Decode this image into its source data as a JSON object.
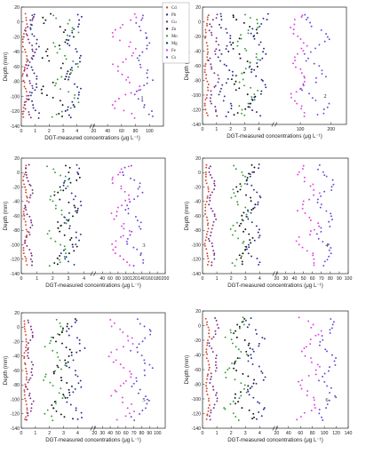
{
  "figure": {
    "xlabel": "DGT-measured concentrations (μg L⁻¹)",
    "ylabel": "Depth (mm)"
  },
  "legend": {
    "items": [
      {
        "label": "Cd",
        "color": "#d4472e"
      },
      {
        "label": "Pb",
        "color": "#2e2f8f"
      },
      {
        "label": "Cu",
        "color": "#7b2a86"
      },
      {
        "label": "Zn",
        "color": "#101010"
      },
      {
        "label": "Mn",
        "color": "#3a9a3a"
      },
      {
        "label": "Mg",
        "color": "#1f2b8c"
      },
      {
        "label": "Fe",
        "color": "#e03ee0"
      },
      {
        "label": "Cs",
        "color": "#6b45d6"
      }
    ]
  },
  "chart_data": [
    {
      "type": "scatter",
      "panel_label": "1",
      "ylim": [
        -140,
        20
      ],
      "y_ticks": [
        20,
        0,
        -20,
        -40,
        -60,
        -80,
        -100,
        -120,
        -140
      ],
      "x_segments": [
        {
          "range": [
            0,
            5
          ],
          "ticks": [
            "0",
            "1",
            "2",
            "3",
            "4"
          ]
        },
        {
          "range": [
            20,
            120
          ],
          "ticks": [
            "20",
            "40",
            "60",
            "80",
            "100"
          ]
        }
      ],
      "break_at": 5,
      "series": [
        {
          "label": "Cd",
          "profile": {
            "base": 0.25,
            "amp": 0.12
          },
          "segment": 0
        },
        {
          "label": "Cu",
          "profile": {
            "base": 0.55,
            "amp": 0.25
          },
          "segment": 0
        },
        {
          "label": "Pb",
          "profile": {
            "base": 0.9,
            "amp": 0.3
          },
          "segment": 0
        },
        {
          "label": "Zn",
          "profile": {
            "base": 2.6,
            "amp": 0.9
          },
          "segment": 0
        },
        {
          "label": "Mn",
          "profile": {
            "base": 3.2,
            "amp": 0.8
          },
          "segment": 0
        },
        {
          "label": "Mg",
          "profile": {
            "base": 3.8,
            "amp": 0.5
          },
          "segment": 0
        },
        {
          "label": "Fe",
          "profile": {
            "base": 65,
            "amp": 15
          },
          "segment": 1
        },
        {
          "label": "Cs",
          "profile": {
            "base": 92,
            "amp": 10
          },
          "segment": 1
        }
      ]
    },
    {
      "type": "scatter",
      "panel_label": "2",
      "ylim": [
        -140,
        20
      ],
      "y_ticks": [
        20,
        0,
        -20,
        -40,
        -60,
        -80,
        -100,
        -120,
        -140
      ],
      "x_segments": [
        {
          "range": [
            0,
            5
          ],
          "ticks": [
            "0",
            "1",
            "2",
            "3",
            "4"
          ]
        },
        {
          "range": [
            20,
            250
          ],
          "ticks": [
            "100",
            "200"
          ]
        }
      ],
      "break_at": 5,
      "series": [
        {
          "label": "Cd",
          "profile": {
            "base": 0.3,
            "amp": 0.1
          },
          "segment": 0
        },
        {
          "label": "Cu",
          "profile": {
            "base": 0.8,
            "amp": 0.3
          },
          "segment": 0
        },
        {
          "label": "Pb",
          "profile": {
            "base": 1.6,
            "amp": 0.4
          },
          "segment": 0
        },
        {
          "label": "Zn",
          "profile": {
            "base": 2.8,
            "amp": 0.8
          },
          "segment": 0
        },
        {
          "label": "Mn",
          "profile": {
            "base": 3.2,
            "amp": 0.7
          },
          "segment": 0
        },
        {
          "label": "Mg",
          "profile": {
            "base": 4.0,
            "amp": 0.5
          },
          "segment": 0
        },
        {
          "label": "Fe",
          "profile": {
            "base": 95,
            "amp": 20
          },
          "segment": 1
        },
        {
          "label": "Cs",
          "profile": {
            "base": 150,
            "amp": 35
          },
          "segment": 1
        }
      ]
    },
    {
      "type": "scatter",
      "panel_label": "3",
      "ylim": [
        -140,
        20
      ],
      "y_ticks": [
        20,
        0,
        -20,
        -40,
        -60,
        -80,
        -100,
        -120,
        -140
      ],
      "x_segments": [
        {
          "range": [
            0,
            4.5
          ],
          "ticks": [
            "0",
            "1",
            "2",
            "3",
            "4"
          ]
        },
        {
          "range": [
            20,
            200
          ],
          "ticks": [
            "40",
            "60",
            "80",
            "100",
            "120",
            "140",
            "160",
            "180",
            "200"
          ]
        }
      ],
      "break_at": 4.5,
      "series": [
        {
          "label": "Cd",
          "profile": {
            "base": 0.25,
            "amp": 0.1
          },
          "segment": 0
        },
        {
          "label": "Cu",
          "profile": {
            "base": 0.5,
            "amp": 0.2
          },
          "segment": 0
        },
        {
          "label": "Mn",
          "profile": {
            "base": 2.4,
            "amp": 0.6
          },
          "segment": 0
        },
        {
          "label": "Zn",
          "profile": {
            "base": 2.9,
            "amp": 0.6
          },
          "segment": 0
        },
        {
          "label": "Pb",
          "profile": {
            "base": 3.2,
            "amp": 0.5
          },
          "segment": 0
        },
        {
          "label": "Fe",
          "profile": {
            "base": 85,
            "amp": 18
          },
          "segment": 1
        },
        {
          "label": "Cs",
          "profile": {
            "base": 120,
            "amp": 20
          },
          "segment": 1
        }
      ]
    },
    {
      "type": "scatter",
      "panel_label": "4",
      "ylim": [
        -140,
        20
      ],
      "y_ticks": [
        20,
        0,
        -20,
        -40,
        -60,
        -80,
        -100,
        -120,
        -140
      ],
      "x_segments": [
        {
          "range": [
            0,
            5
          ],
          "ticks": [
            "0",
            "1",
            "2",
            "3",
            "4"
          ]
        },
        {
          "range": [
            20,
            100
          ],
          "ticks": [
            "20",
            "30",
            "40",
            "50",
            "60",
            "70",
            "80",
            "90",
            "100"
          ]
        }
      ],
      "break_at": 5,
      "series": [
        {
          "label": "Cd",
          "profile": {
            "base": 0.3,
            "amp": 0.1
          },
          "segment": 0
        },
        {
          "label": "Cu",
          "profile": {
            "base": 0.7,
            "amp": 0.2
          },
          "segment": 0
        },
        {
          "label": "Mn",
          "profile": {
            "base": 2.6,
            "amp": 0.5
          },
          "segment": 0
        },
        {
          "label": "Zn",
          "profile": {
            "base": 3.0,
            "amp": 0.5
          },
          "segment": 0
        },
        {
          "label": "Pb",
          "profile": {
            "base": 3.6,
            "amp": 0.4
          },
          "segment": 0
        },
        {
          "label": "Fe",
          "profile": {
            "base": 55,
            "amp": 10
          },
          "segment": 1
        },
        {
          "label": "Cs",
          "profile": {
            "base": 75,
            "amp": 8
          },
          "segment": 1
        }
      ]
    },
    {
      "type": "scatter",
      "panel_label": "5",
      "ylim": [
        -140,
        20
      ],
      "y_ticks": [
        20,
        0,
        -20,
        -40,
        -60,
        -80,
        -100,
        -120,
        -140
      ],
      "x_segments": [
        {
          "range": [
            0,
            5
          ],
          "ticks": [
            "0",
            "1",
            "2",
            "3",
            "4"
          ]
        },
        {
          "range": [
            20,
            110
          ],
          "ticks": [
            "20",
            "30",
            "40",
            "50",
            "60",
            "70",
            "80",
            "90",
            "100"
          ]
        }
      ],
      "break_at": 5,
      "series": [
        {
          "label": "Cd",
          "profile": {
            "base": 0.3,
            "amp": 0.08
          },
          "segment": 0
        },
        {
          "label": "Cu",
          "profile": {
            "base": 0.6,
            "amp": 0.2
          },
          "segment": 0
        },
        {
          "label": "Mn",
          "profile": {
            "base": 2.4,
            "amp": 0.6
          },
          "segment": 0
        },
        {
          "label": "Zn",
          "profile": {
            "base": 3.0,
            "amp": 0.6
          },
          "segment": 0
        },
        {
          "label": "Pb",
          "profile": {
            "base": 3.8,
            "amp": 0.5
          },
          "segment": 0
        },
        {
          "label": "Fe",
          "profile": {
            "base": 55,
            "amp": 12
          },
          "segment": 1
        },
        {
          "label": "Cs",
          "profile": {
            "base": 80,
            "amp": 10
          },
          "segment": 1
        }
      ]
    },
    {
      "type": "scatter",
      "panel_label": "6",
      "ylim": [
        -140,
        20
      ],
      "y_ticks": [
        20,
        0,
        -20,
        -40,
        -60,
        -80,
        -100,
        -120,
        -140
      ],
      "x_segments": [
        {
          "range": [
            0,
            5
          ],
          "ticks": [
            "0",
            "1",
            "2",
            "3",
            "4"
          ]
        },
        {
          "range": [
            20,
            140
          ],
          "ticks": [
            "20",
            "40",
            "60",
            "80",
            "100",
            "120",
            "140"
          ]
        }
      ],
      "break_at": 5,
      "series": [
        {
          "label": "Cd",
          "profile": {
            "base": 0.35,
            "amp": 0.1
          },
          "segment": 0
        },
        {
          "label": "Cu",
          "profile": {
            "base": 0.8,
            "amp": 0.25
          },
          "segment": 0
        },
        {
          "label": "Mn",
          "profile": {
            "base": 2.3,
            "amp": 0.6
          },
          "segment": 0
        },
        {
          "label": "Zn",
          "profile": {
            "base": 2.9,
            "amp": 0.6
          },
          "segment": 0
        },
        {
          "label": "Pb",
          "profile": {
            "base": 3.7,
            "amp": 0.5
          },
          "segment": 0
        },
        {
          "label": "Fe",
          "profile": {
            "base": 75,
            "amp": 15
          },
          "segment": 1
        },
        {
          "label": "Cs",
          "profile": {
            "base": 105,
            "amp": 12
          },
          "segment": 1
        }
      ]
    }
  ]
}
